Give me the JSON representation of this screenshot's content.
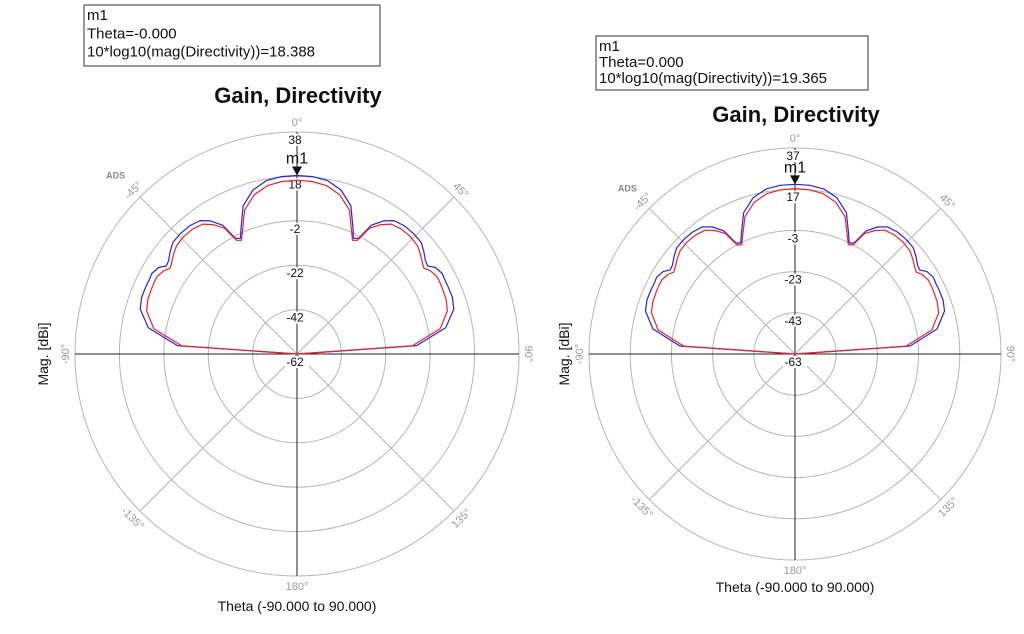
{
  "chart_data": [
    {
      "type": "polar-line",
      "title": "Gain, Directivity",
      "xlabel": "Theta (-90.000 to 90.000)",
      "ylabel": "Mag. [dBi]",
      "r_ticks": [
        "38",
        "18",
        "-2",
        "-22",
        "-42",
        "-62"
      ],
      "r_range": [
        -62,
        38
      ],
      "angle_labels": [
        "0°",
        "45°",
        "90°",
        "135°",
        "180°",
        "-135°",
        "-90°",
        "-45°"
      ],
      "watermark": "ADS",
      "marker": {
        "name": "m1",
        "lines": [
          "m1",
          "Theta=-0.000",
          "10*log10(mag(Directivity))=18.388"
        ],
        "theta": 0,
        "value": 18.388
      },
      "series": [
        {
          "name": "Directivity",
          "color": "#2222ee",
          "theta": [
            -90,
            -86,
            -80,
            -74,
            -70,
            -66,
            -63,
            -61,
            -58,
            -56,
            -54,
            -51,
            -48,
            -44,
            -40,
            -36,
            -33,
            -30,
            -28,
            -26,
            -24,
            -20,
            -15,
            -10,
            -5,
            0,
            5,
            10,
            15,
            20,
            24,
            26,
            28,
            30,
            33,
            36,
            40,
            44,
            48,
            51,
            54,
            56,
            58,
            61,
            63,
            66,
            70,
            74,
            80,
            86,
            90
          ],
          "r": [
            -62,
            -8,
            6,
            11.5,
            12.5,
            12.5,
            12.5,
            12.8,
            11.5,
            9,
            9.5,
            11.5,
            13.2,
            13.5,
            13.3,
            12.3,
            9.5,
            5,
            -3,
            -4,
            0,
            9,
            14.5,
            17.3,
            18.2,
            18.388,
            18.2,
            17.3,
            14.5,
            9,
            0,
            -4,
            -3,
            5,
            9.5,
            12.3,
            13.3,
            13.5,
            13.2,
            11.5,
            9.5,
            9,
            11.5,
            12.8,
            12.5,
            12.5,
            12.5,
            11.5,
            6,
            -8,
            -62
          ]
        },
        {
          "name": "Gain",
          "color": "#ee2222",
          "theta": [
            -90,
            -86,
            -80,
            -74,
            -70,
            -66,
            -63,
            -61,
            -58,
            -56,
            -54,
            -51,
            -48,
            -44,
            -40,
            -36,
            -33,
            -30,
            -28,
            -26,
            -24,
            -20,
            -15,
            -10,
            -5,
            0,
            5,
            10,
            15,
            20,
            24,
            26,
            28,
            30,
            33,
            36,
            40,
            44,
            48,
            51,
            54,
            56,
            58,
            61,
            63,
            66,
            70,
            74,
            80,
            86,
            90
          ],
          "r": [
            -62,
            -10,
            3.5,
            8.5,
            9.5,
            9.8,
            10,
            10,
            8.8,
            7,
            7.8,
            9.5,
            11,
            11.5,
            11.3,
            10.3,
            7.5,
            3.5,
            -4,
            -5,
            -1.5,
            7,
            12.3,
            15,
            16,
            16.3,
            16,
            15,
            12.3,
            7,
            -1.5,
            -5,
            -4,
            3.5,
            7.5,
            10.3,
            11.3,
            11.5,
            11,
            9.5,
            7.8,
            7,
            8.8,
            10,
            10,
            9.8,
            9.5,
            8.5,
            3.5,
            -10,
            -62
          ]
        }
      ]
    },
    {
      "type": "polar-line",
      "title": "Gain, Directivity",
      "xlabel": "Theta (-90.000 to 90.000)",
      "ylabel": "Mag. [dBi]",
      "r_ticks": [
        "37",
        "17",
        "-3",
        "-23",
        "-43",
        "-63"
      ],
      "r_range": [
        -63,
        37
      ],
      "angle_labels": [
        "0°",
        "45°",
        "90°",
        "135°",
        "180°",
        "-135°",
        "-90°",
        "-45°"
      ],
      "watermark": "ADS",
      "marker": {
        "name": "m1",
        "lines": [
          "m1",
          "Theta=0.000",
          "10*log10(mag(Directivity))=19.365"
        ],
        "theta": 0,
        "value": 19.365
      },
      "series": [
        {
          "name": "Directivity",
          "color": "#2222ee",
          "theta": [
            -90,
            -86,
            -80,
            -74,
            -70,
            -66,
            -63,
            -61,
            -58,
            -56,
            -54,
            -51,
            -48,
            -44,
            -40,
            -36,
            -33,
            -30,
            -28,
            -26,
            -24,
            -20,
            -15,
            -10,
            -5,
            0,
            5,
            10,
            15,
            20,
            24,
            26,
            28,
            30,
            33,
            36,
            40,
            44,
            48,
            51,
            54,
            56,
            58,
            61,
            63,
            66,
            70,
            74,
            80,
            86,
            90
          ],
          "r": [
            -63,
            -7,
            7,
            12.5,
            13.5,
            13.5,
            13.5,
            13.8,
            12.5,
            10,
            10.5,
            12.5,
            14.2,
            14.5,
            14.3,
            13.3,
            10.5,
            6,
            -2,
            -3,
            1,
            10,
            15.5,
            18.3,
            19.2,
            19.365,
            19.2,
            18.3,
            15.5,
            10,
            1,
            -3,
            -2,
            6,
            10.5,
            13.3,
            14.3,
            14.5,
            14.2,
            12.5,
            10.5,
            10,
            12.5,
            13.8,
            13.5,
            13.5,
            13.5,
            12.5,
            7,
            -7,
            -63
          ]
        },
        {
          "name": "Gain",
          "color": "#ee2222",
          "theta": [
            -90,
            -86,
            -80,
            -74,
            -70,
            -66,
            -63,
            -61,
            -58,
            -56,
            -54,
            -51,
            -48,
            -44,
            -40,
            -36,
            -33,
            -30,
            -28,
            -26,
            -24,
            -20,
            -15,
            -10,
            -5,
            0,
            5,
            10,
            15,
            20,
            24,
            26,
            28,
            30,
            33,
            36,
            40,
            44,
            48,
            51,
            54,
            56,
            58,
            61,
            63,
            66,
            70,
            74,
            80,
            86,
            90
          ],
          "r": [
            -63,
            -9,
            4.5,
            9.5,
            10.5,
            10.8,
            11,
            11,
            9.8,
            8,
            8.8,
            10.5,
            12,
            12.5,
            12.3,
            11.3,
            8.5,
            4.5,
            -3,
            -4,
            -0.5,
            8,
            13.3,
            16,
            17,
            17.3,
            17,
            16,
            13.3,
            8,
            -0.5,
            -4,
            -3,
            4.5,
            8.5,
            11.3,
            12.3,
            12.5,
            12,
            10.5,
            8.8,
            8,
            9.8,
            11,
            11,
            10.8,
            10.5,
            9.5,
            4.5,
            -9,
            -63
          ]
        }
      ]
    }
  ]
}
